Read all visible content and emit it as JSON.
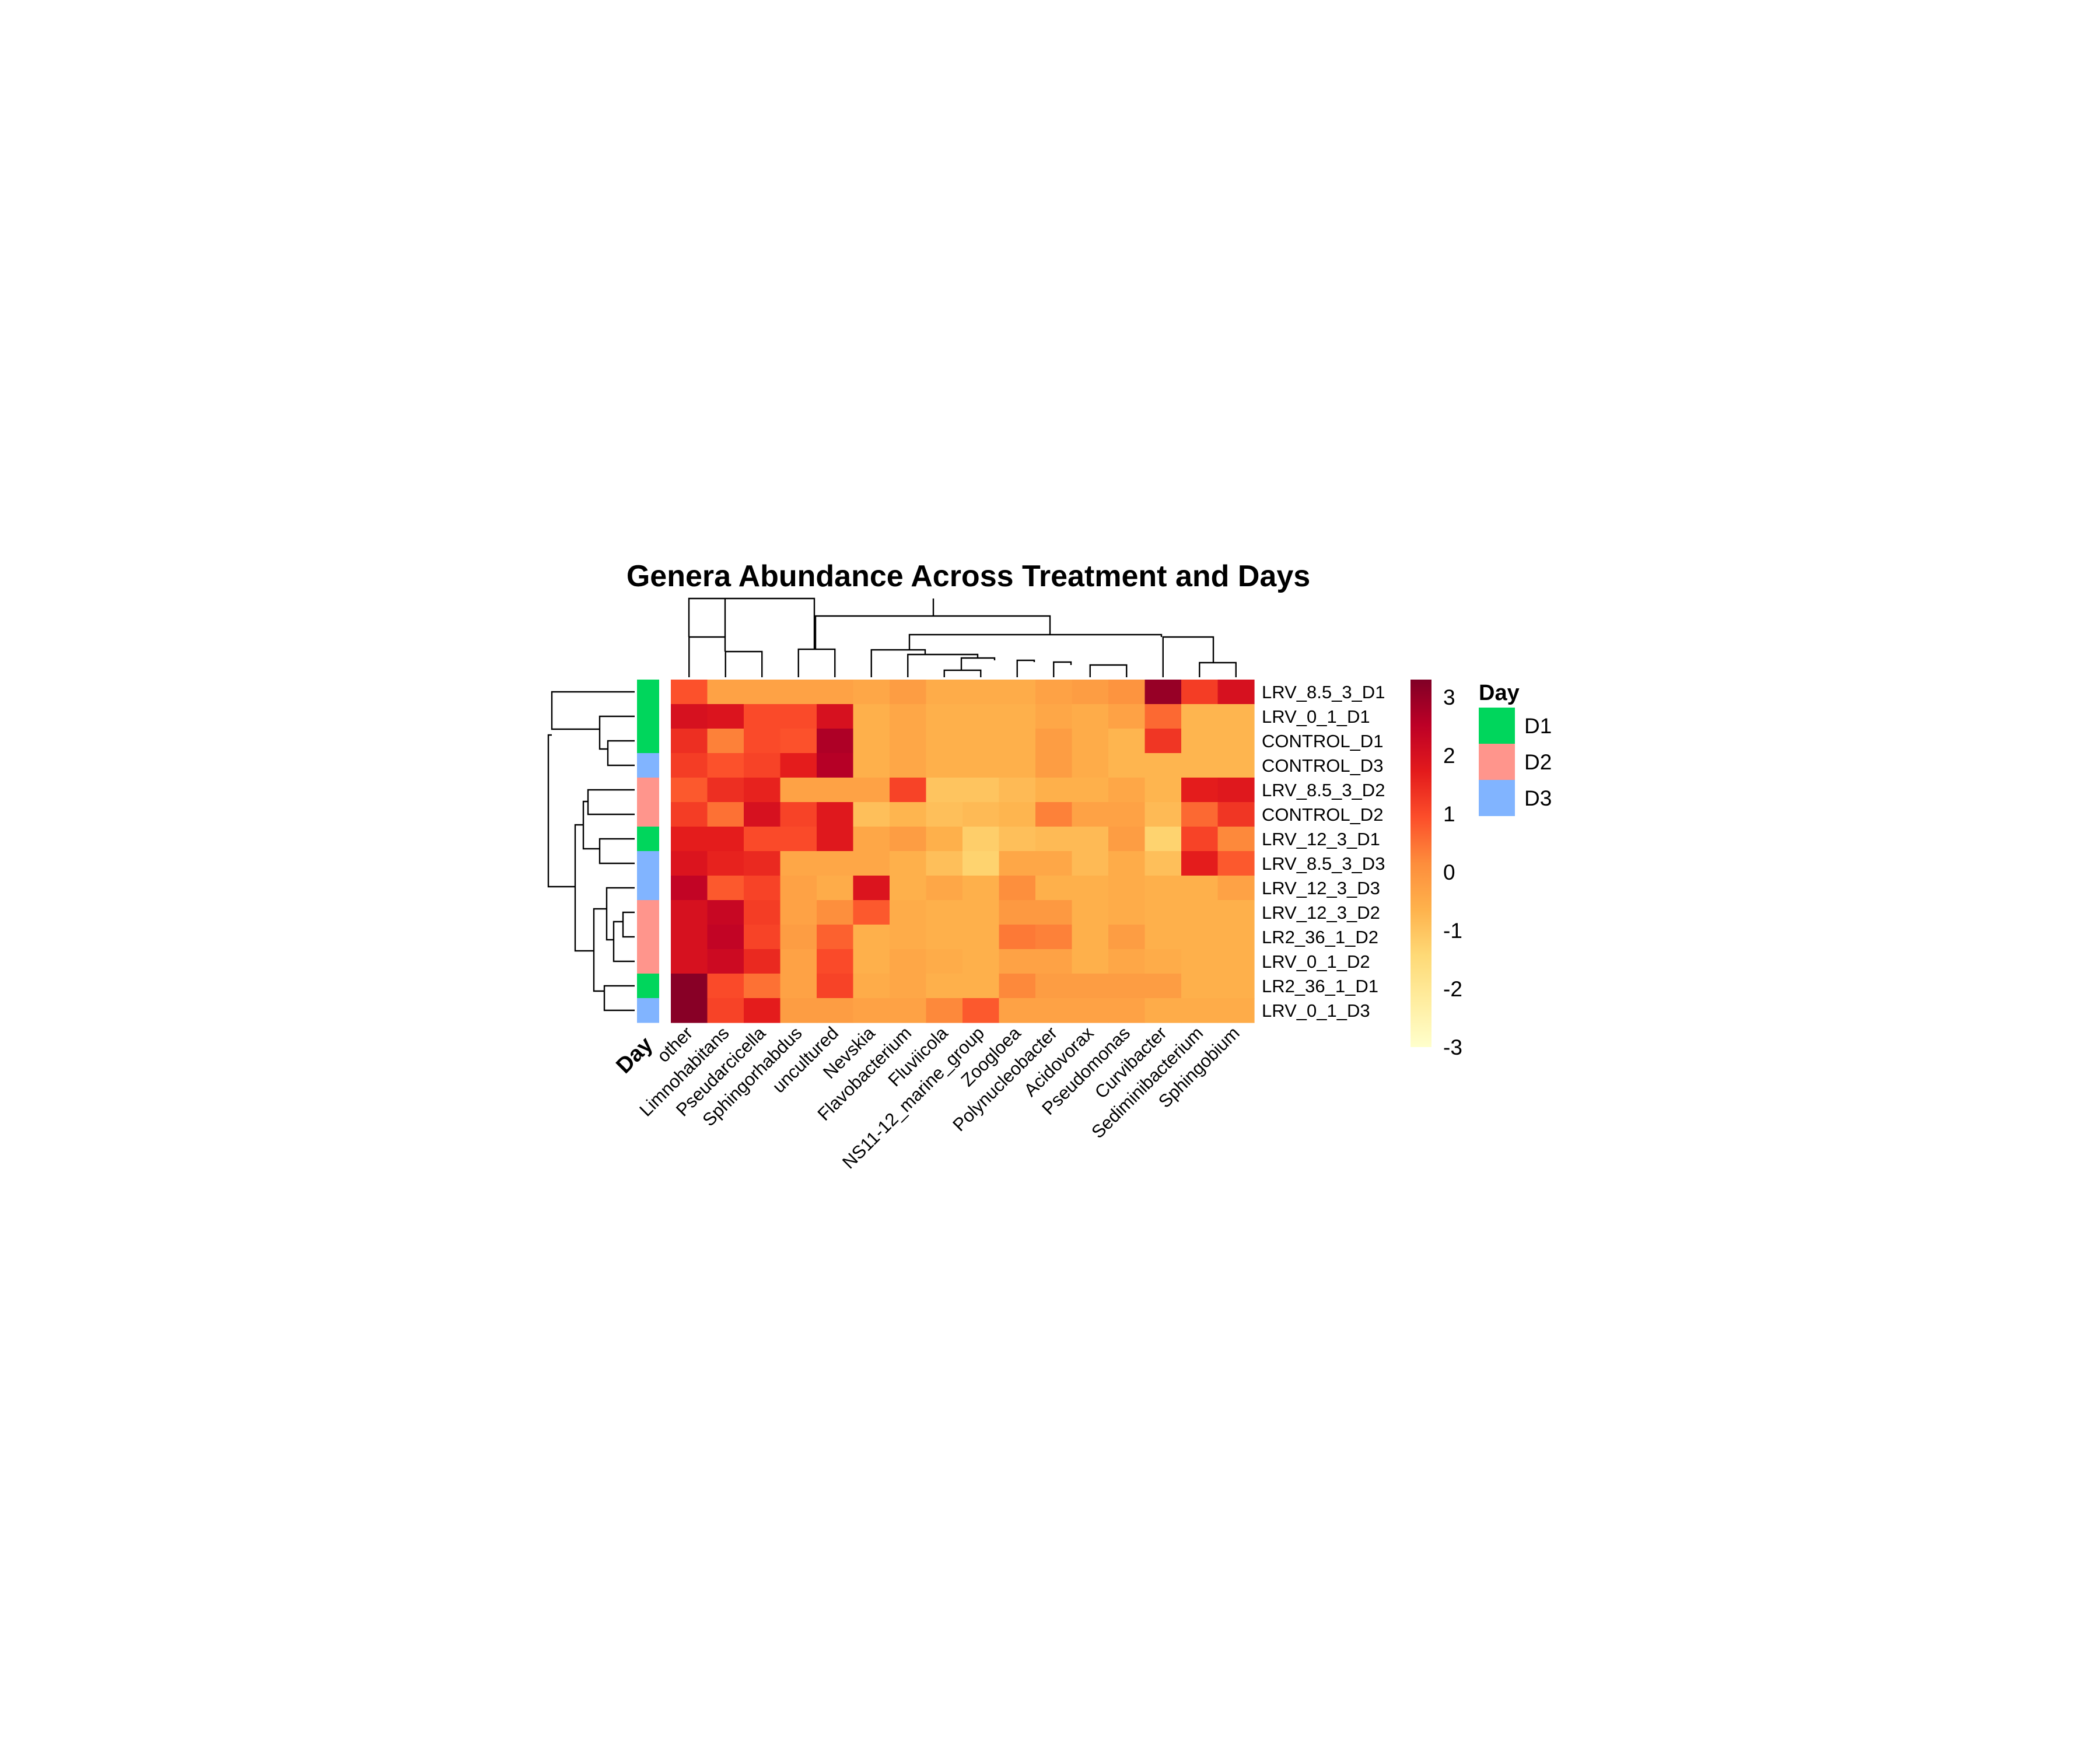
{
  "chart_data": {
    "type": "heatmap",
    "title": "Genera Abundance Across Treatment and Days",
    "columns": [
      "other",
      "Limnohabitans",
      "Pseudarcicella",
      "Sphingorhabdus",
      "uncultured",
      "Nevskia",
      "Flavobacterium",
      "Fluviicola",
      "NS11-12_marine_group",
      "Zoogloea",
      "Polynucleobacter",
      "Acidovorax",
      "Pseudomonas",
      "Curvibacter",
      "Sediminibacterium",
      "Sphingobium"
    ],
    "rows": [
      "LRV_8.5_3_D1",
      "LRV_0_1_D1",
      "CONTROL_D1",
      "CONTROL_D3",
      "LRV_8.5_3_D2",
      "CONTROL_D2",
      "LRV_12_3_D1",
      "LRV_8.5_3_D3",
      "LRV_12_3_D3",
      "LRV_12_3_D2",
      "LR2_36_1_D2",
      "LRV_0_1_D2",
      "LR2_36_1_D1",
      "LRV_0_1_D3"
    ],
    "values": [
      [
        0.9,
        -0.3,
        -0.3,
        -0.3,
        -0.3,
        -0.4,
        -0.2,
        -0.5,
        -0.5,
        -0.5,
        -0.3,
        -0.2,
        0.0,
        3.0,
        1.2,
        2.0
      ],
      [
        2.0,
        1.9,
        1.0,
        1.0,
        2.0,
        -0.6,
        -0.4,
        -0.6,
        -0.6,
        -0.6,
        -0.4,
        -0.5,
        -0.3,
        0.6,
        -0.7,
        -0.7
      ],
      [
        1.4,
        0.3,
        1.0,
        0.9,
        2.7,
        -0.6,
        -0.4,
        -0.6,
        -0.6,
        -0.6,
        -0.2,
        -0.5,
        -0.7,
        1.3,
        -0.7,
        -0.7
      ],
      [
        1.2,
        0.9,
        1.1,
        1.7,
        2.6,
        -0.6,
        -0.4,
        -0.6,
        -0.6,
        -0.6,
        -0.2,
        -0.5,
        -0.7,
        -0.7,
        -0.7,
        -0.7
      ],
      [
        0.8,
        1.4,
        1.6,
        -0.3,
        -0.3,
        -0.3,
        1.1,
        -1.0,
        -1.0,
        -0.8,
        -0.6,
        -0.6,
        -0.4,
        -0.7,
        1.7,
        1.8
      ],
      [
        1.2,
        0.5,
        2.0,
        1.1,
        1.8,
        -0.9,
        -0.7,
        -0.9,
        -0.8,
        -0.7,
        0.3,
        -0.3,
        -0.3,
        -0.8,
        0.6,
        1.3
      ],
      [
        1.7,
        1.7,
        1.0,
        1.0,
        1.8,
        -0.4,
        -0.2,
        -0.6,
        -1.2,
        -0.9,
        -0.8,
        -0.8,
        -0.2,
        -1.3,
        1.1,
        0.2
      ],
      [
        1.9,
        1.6,
        1.5,
        -0.4,
        -0.4,
        -0.4,
        -0.6,
        -0.9,
        -1.3,
        -0.4,
        -0.4,
        -0.8,
        -0.5,
        -0.9,
        1.7,
        0.8
      ],
      [
        2.4,
        0.8,
        1.1,
        -0.3,
        -0.5,
        1.9,
        -0.6,
        -0.4,
        -0.6,
        0.1,
        -0.6,
        -0.6,
        -0.5,
        -0.6,
        -0.6,
        -0.3
      ],
      [
        2.0,
        2.3,
        1.2,
        -0.3,
        0.1,
        0.8,
        -0.5,
        -0.6,
        -0.6,
        -0.1,
        -0.1,
        -0.6,
        -0.5,
        -0.6,
        -0.6,
        -0.6
      ],
      [
        2.0,
        2.4,
        1.1,
        -0.2,
        0.7,
        -0.6,
        -0.5,
        -0.6,
        -0.6,
        0.4,
        0.3,
        -0.6,
        -0.2,
        -0.6,
        -0.6,
        -0.6
      ],
      [
        2.0,
        2.2,
        1.5,
        -0.3,
        1.0,
        -0.6,
        -0.4,
        -0.5,
        -0.6,
        -0.3,
        -0.3,
        -0.6,
        -0.4,
        -0.5,
        -0.6,
        -0.6
      ],
      [
        3.2,
        1.0,
        0.5,
        -0.3,
        1.1,
        -0.5,
        -0.4,
        -0.6,
        -0.6,
        0.2,
        -0.2,
        -0.2,
        -0.2,
        -0.2,
        -0.6,
        -0.6
      ],
      [
        3.2,
        1.1,
        1.7,
        -0.2,
        -0.2,
        -0.3,
        -0.3,
        0.2,
        0.8,
        -0.3,
        -0.3,
        -0.3,
        -0.3,
        -0.5,
        -0.5,
        -0.5
      ]
    ],
    "row_annotation": {
      "title": "Day",
      "values": [
        "D1",
        "D1",
        "D1",
        "D3",
        "D2",
        "D2",
        "D1",
        "D3",
        "D3",
        "D2",
        "D2",
        "D2",
        "D1",
        "D3"
      ]
    },
    "legend": {
      "title": "Day",
      "items": [
        {
          "label": "D1",
          "color": "#00d65c"
        },
        {
          "label": "D2",
          "color": "#ff958c"
        },
        {
          "label": "D3",
          "color": "#81b4ff"
        }
      ],
      "placement": "right"
    },
    "color_scale": {
      "ticks": [
        3,
        2,
        1,
        0,
        -1,
        -2,
        -3
      ],
      "range": [
        -3,
        3.3
      ],
      "palette": [
        "#ffffcc",
        "#ffeda0",
        "#fed976",
        "#feb24c",
        "#fd8d3c",
        "#fc4e2a",
        "#e31a1c",
        "#bd0026",
        "#800026"
      ]
    }
  }
}
